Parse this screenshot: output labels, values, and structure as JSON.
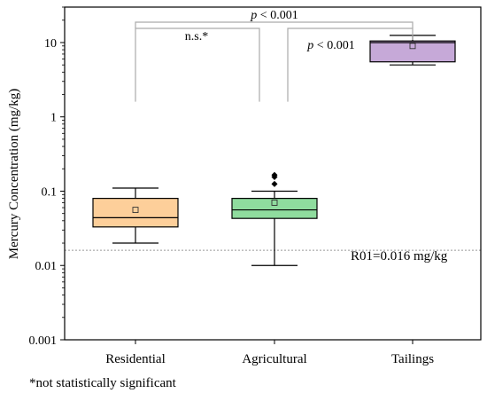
{
  "chart_data": {
    "type": "box",
    "ylabel": "Mercury Concentration (mg/kg)",
    "yscale": "log",
    "ylim": [
      0.001,
      30
    ],
    "ytick_values": [
      0.001,
      0.01,
      0.1,
      1,
      10
    ],
    "ytick_labels": [
      "0.001",
      "0.01",
      "0.1",
      "1",
      "10"
    ],
    "categories": [
      "Residential",
      "Agricultural",
      "Tailings"
    ],
    "boxes": [
      {
        "category": "Residential",
        "color": "#FDCF9A",
        "whisker_low": 0.02,
        "q1": 0.033,
        "median": 0.044,
        "q3": 0.08,
        "whisker_high": 0.11,
        "mean": 0.056,
        "outliers": []
      },
      {
        "category": "Agricultural",
        "color": "#8FDC9E",
        "whisker_low": 0.01,
        "q1": 0.043,
        "median": 0.056,
        "q3": 0.08,
        "whisker_high": 0.1,
        "mean": 0.07,
        "outliers": [
          0.125,
          0.155,
          0.165
        ]
      },
      {
        "category": "Tailings",
        "color": "#C6A9D8",
        "whisker_low": 5.0,
        "q1": 5.5,
        "median": 10.0,
        "q3": 10.5,
        "whisker_high": 12.5,
        "mean": 9.0,
        "outliers": []
      }
    ],
    "reference_line": {
      "value": 0.016,
      "label": "R01=0.016 mg/kg",
      "style": "dotted",
      "color": "#999999"
    },
    "comparisons": [
      {
        "from": "Residential",
        "to": "Tailings",
        "label_italic": "p",
        "label_rest": " < 0.001"
      },
      {
        "from": "Residential",
        "to": "Agricultural",
        "label_italic": "",
        "label_rest": "n.s.*"
      },
      {
        "from": "Agricultural",
        "to": "Tailings",
        "label_italic": "p",
        "label_rest": " < 0.001"
      }
    ]
  },
  "footnote": "*not statistically significant"
}
